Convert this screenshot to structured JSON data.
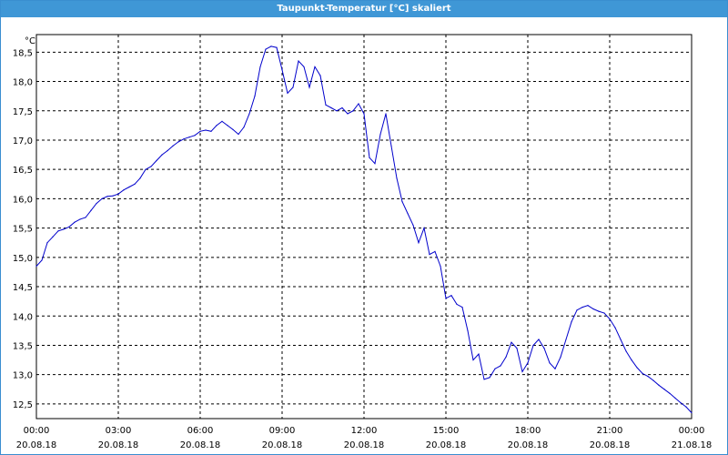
{
  "window": {
    "title": "Taupunkt-Temperatur [°C] skaliert"
  },
  "chart_data": {
    "type": "line",
    "title": "Taupunkt-Temperatur [°C] skaliert",
    "ylabel": "°C",
    "xlabel": "",
    "ylim": [
      12.25,
      18.8
    ],
    "xlim": [
      0,
      24
    ],
    "grid": true,
    "line_color": "#0000cc",
    "yticks": [
      "12,5",
      "13,0",
      "13,5",
      "14,0",
      "14,5",
      "15,0",
      "15,5",
      "16,0",
      "16,5",
      "17,0",
      "17,5",
      "18,0",
      "18,5"
    ],
    "ytick_values": [
      12.5,
      13.0,
      13.5,
      14.0,
      14.5,
      15.0,
      15.5,
      16.0,
      16.5,
      17.0,
      17.5,
      18.0,
      18.5
    ],
    "xticks": [
      {
        "hour": 0,
        "time": "00:00",
        "date": "20.08.18"
      },
      {
        "hour": 3,
        "time": "03:00",
        "date": "20.08.18"
      },
      {
        "hour": 6,
        "time": "06:00",
        "date": "20.08.18"
      },
      {
        "hour": 9,
        "time": "09:00",
        "date": "20.08.18"
      },
      {
        "hour": 12,
        "time": "12:00",
        "date": "20.08.18"
      },
      {
        "hour": 15,
        "time": "15:00",
        "date": "20.08.18"
      },
      {
        "hour": 18,
        "time": "18:00",
        "date": "20.08.18"
      },
      {
        "hour": 21,
        "time": "21:00",
        "date": "20.08.18"
      },
      {
        "hour": 24,
        "time": "00:00",
        "date": "21.08.18"
      }
    ],
    "series": [
      {
        "x": [
          0,
          0.2,
          0.4,
          0.6,
          0.8,
          1.0,
          1.2,
          1.4,
          1.6,
          1.8,
          2.0,
          2.2,
          2.4,
          2.6,
          2.8,
          3.0,
          3.2,
          3.4,
          3.6,
          3.8,
          4.0,
          4.2,
          4.4,
          4.6,
          4.8,
          5.0,
          5.2,
          5.4,
          5.6,
          5.8,
          6.0,
          6.2,
          6.4,
          6.6,
          6.8,
          7.0,
          7.2,
          7.4,
          7.6,
          7.8,
          8.0,
          8.2,
          8.4,
          8.6,
          8.8,
          9.0,
          9.2,
          9.4,
          9.6,
          9.8,
          10.0,
          10.2,
          10.4,
          10.6,
          10.8,
          11.0,
          11.2,
          11.4,
          11.6,
          11.8,
          12.0,
          12.2,
          12.4,
          12.6,
          12.8,
          13.0,
          13.2,
          13.4,
          13.6,
          13.8,
          14.0,
          14.2,
          14.4,
          14.6,
          14.8,
          15.0,
          15.2,
          15.4,
          15.6,
          15.8,
          16.0,
          16.2,
          16.4,
          16.6,
          16.8,
          17.0,
          17.2,
          17.4,
          17.6,
          17.8,
          18.0,
          18.2,
          18.4,
          18.6,
          18.8,
          19.0,
          19.2,
          19.4,
          19.6,
          19.8,
          20.0,
          20.2,
          20.4,
          20.6,
          20.8,
          21.0,
          21.2,
          21.4,
          21.6,
          21.8,
          22.0,
          22.2,
          22.4,
          22.6,
          22.8,
          23.0,
          23.2,
          23.4,
          23.6,
          23.8,
          24.0
        ],
        "y": [
          14.85,
          14.95,
          15.25,
          15.35,
          15.45,
          15.48,
          15.52,
          15.6,
          15.65,
          15.68,
          15.8,
          15.92,
          16.0,
          16.04,
          16.05,
          16.08,
          16.15,
          16.2,
          16.25,
          16.35,
          16.5,
          16.55,
          16.65,
          16.75,
          16.82,
          16.9,
          16.97,
          17.02,
          17.05,
          17.08,
          17.15,
          17.17,
          17.15,
          17.25,
          17.32,
          17.25,
          17.18,
          17.1,
          17.22,
          17.45,
          17.75,
          18.25,
          18.55,
          18.6,
          18.58,
          18.2,
          17.8,
          17.9,
          18.35,
          18.25,
          17.9,
          18.25,
          18.1,
          17.6,
          17.55,
          17.5,
          17.55,
          17.45,
          17.5,
          17.62,
          17.45,
          16.7,
          16.6,
          17.1,
          17.45,
          16.9,
          16.35,
          15.95,
          15.75,
          15.55,
          15.25,
          15.5,
          15.05,
          15.1,
          14.85,
          14.3,
          14.35,
          14.2,
          14.15,
          13.75,
          13.25,
          13.35,
          12.92,
          12.95,
          13.1,
          13.15,
          13.3,
          13.55,
          13.45,
          13.05,
          13.2,
          13.5,
          13.6,
          13.45,
          13.2,
          13.1,
          13.3,
          13.6,
          13.9,
          14.1,
          14.15,
          14.18,
          14.12,
          14.08,
          14.05,
          13.95,
          13.8,
          13.6,
          13.4,
          13.25,
          13.12,
          13.02,
          12.97,
          12.9,
          12.82,
          12.75,
          12.68,
          12.6,
          12.52,
          12.45,
          12.35
        ]
      }
    ]
  }
}
